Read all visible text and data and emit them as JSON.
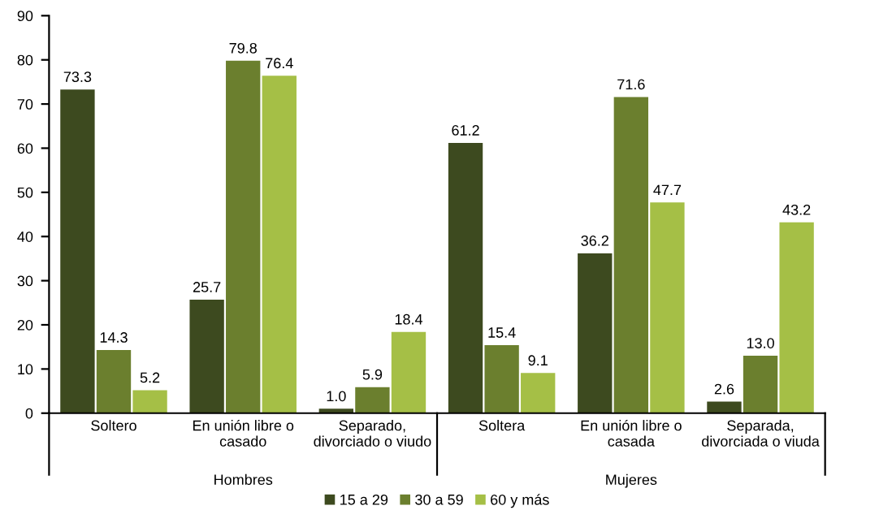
{
  "chart_data": {
    "type": "bar",
    "categories": [
      "Soltero",
      "En unión libre o\ncasado",
      "Separado,\ndivorciado o viudo",
      "Soltera",
      "En unión libre o\ncasada",
      "Separada,\ndivorciada o viuda"
    ],
    "series": [
      {
        "name": "15 a 29",
        "color": "#3d4a1f",
        "values": [
          73.3,
          25.7,
          1.0,
          61.2,
          36.2,
          2.6
        ],
        "value_labels": [
          "73.3",
          "25.7",
          "1.0",
          "61.2",
          "36.2",
          "2.6"
        ]
      },
      {
        "name": "30 a 59",
        "color": "#6b7f2e",
        "values": [
          14.3,
          79.8,
          5.9,
          15.4,
          71.6,
          13.0
        ],
        "value_labels": [
          "14.3",
          "79.8",
          "5.9",
          "15.4",
          "71.6",
          "13.0"
        ]
      },
      {
        "name": "60 y más",
        "color": "#a5bf46",
        "values": [
          5.2,
          76.4,
          18.4,
          9.1,
          47.7,
          43.2
        ],
        "value_labels": [
          "5.2",
          "76.4",
          "18.4",
          "9.1",
          "47.7",
          "43.2"
        ]
      }
    ],
    "annotations": [
      "Hombres",
      "Mujeres"
    ],
    "ylim": [
      0,
      90
    ],
    "yticks": [
      0,
      10,
      20,
      30,
      40,
      50,
      60,
      70,
      80,
      90
    ],
    "grid": false,
    "legend": "bottom"
  }
}
